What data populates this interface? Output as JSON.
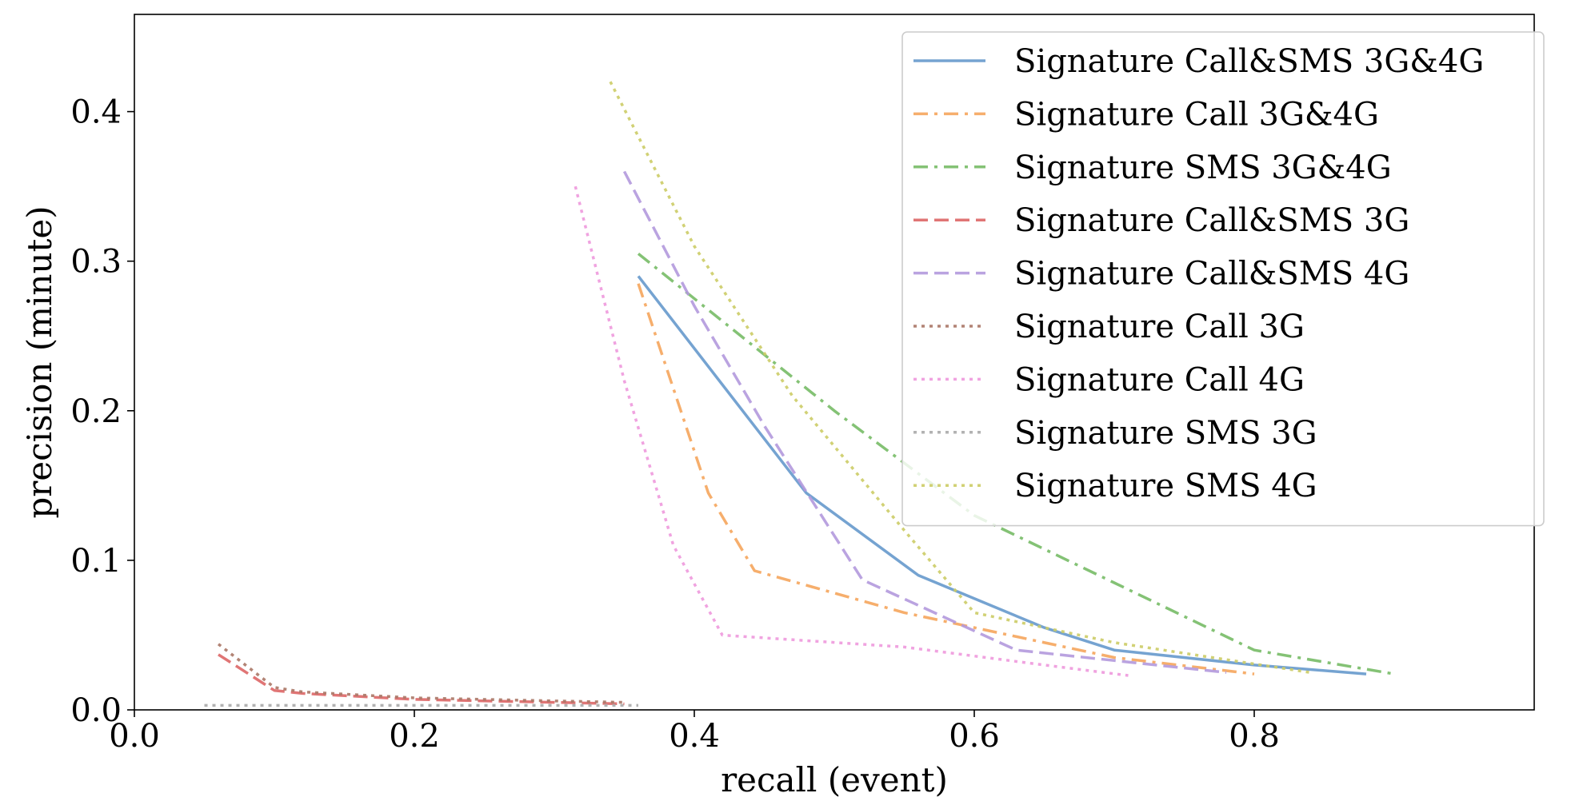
{
  "chart_data": {
    "type": "line",
    "xlabel": "recall (event)",
    "ylabel": "precision (minute)",
    "xlim": [
      0.0,
      1.0
    ],
    "ylim": [
      0.0,
      0.465
    ],
    "xticks": [
      0.0,
      0.2,
      0.4,
      0.6,
      0.8
    ],
    "yticks": [
      0.0,
      0.1,
      0.2,
      0.3,
      0.4
    ],
    "xtick_labels": [
      "0.0",
      "0.2",
      "0.4",
      "0.6",
      "0.8"
    ],
    "ytick_labels": [
      "0.0",
      "0.1",
      "0.2",
      "0.3",
      "0.4"
    ],
    "grid": false,
    "legend_position": "top-right",
    "series": [
      {
        "name": "Signature Call&SMS 3G&4G",
        "color": "#6699cc",
        "dash": "solid",
        "x": [
          0.36,
          0.48,
          0.56,
          0.65,
          0.7,
          0.8,
          0.88
        ],
        "y": [
          0.29,
          0.145,
          0.09,
          0.055,
          0.04,
          0.03,
          0.024
        ]
      },
      {
        "name": "Signature Call 3G&4G",
        "color": "#f5a55c",
        "dash": "dashdot",
        "x": [
          0.36,
          0.41,
          0.443,
          0.55,
          0.7,
          0.8
        ],
        "y": [
          0.285,
          0.145,
          0.093,
          0.065,
          0.035,
          0.024
        ]
      },
      {
        "name": "Signature SMS 3G&4G",
        "color": "#77bb66",
        "dash": "dashdot",
        "x": [
          0.36,
          0.5,
          0.6,
          0.7,
          0.8,
          0.9
        ],
        "y": [
          0.305,
          0.2,
          0.13,
          0.085,
          0.04,
          0.024
        ]
      },
      {
        "name": "Signature Call&SMS 3G",
        "color": "#dd6666",
        "dash": "dashed",
        "x": [
          0.06,
          0.1,
          0.12,
          0.2,
          0.3,
          0.35
        ],
        "y": [
          0.037,
          0.013,
          0.011,
          0.007,
          0.005,
          0.004
        ]
      },
      {
        "name": "Signature Call&SMS 4G",
        "color": "#b399dd",
        "dash": "dashed",
        "x": [
          0.35,
          0.4,
          0.45,
          0.52,
          0.63,
          0.7,
          0.78
        ],
        "y": [
          0.36,
          0.27,
          0.19,
          0.087,
          0.04,
          0.033,
          0.025
        ]
      },
      {
        "name": "Signature Call 3G",
        "color": "#aa7766",
        "dash": "dotted",
        "x": [
          0.06,
          0.1,
          0.12,
          0.2,
          0.3,
          0.35
        ],
        "y": [
          0.044,
          0.015,
          0.012,
          0.008,
          0.006,
          0.005
        ]
      },
      {
        "name": "Signature Call 4G",
        "color": "#ee99dd",
        "dash": "dotted",
        "x": [
          0.315,
          0.35,
          0.385,
          0.42,
          0.55,
          0.65,
          0.71
        ],
        "y": [
          0.35,
          0.22,
          0.11,
          0.05,
          0.042,
          0.03,
          0.023
        ]
      },
      {
        "name": "Signature SMS 3G",
        "color": "#aaaaaa",
        "dash": "dotted",
        "x": [
          0.05,
          0.1,
          0.2,
          0.3,
          0.36
        ],
        "y": [
          0.003,
          0.003,
          0.003,
          0.003,
          0.003
        ]
      },
      {
        "name": "Signature SMS 4G",
        "color": "#cccc66",
        "dash": "dotted",
        "x": [
          0.34,
          0.4,
          0.47,
          0.55,
          0.6,
          0.7,
          0.84
        ],
        "y": [
          0.42,
          0.31,
          0.21,
          0.12,
          0.065,
          0.045,
          0.025
        ]
      }
    ]
  }
}
